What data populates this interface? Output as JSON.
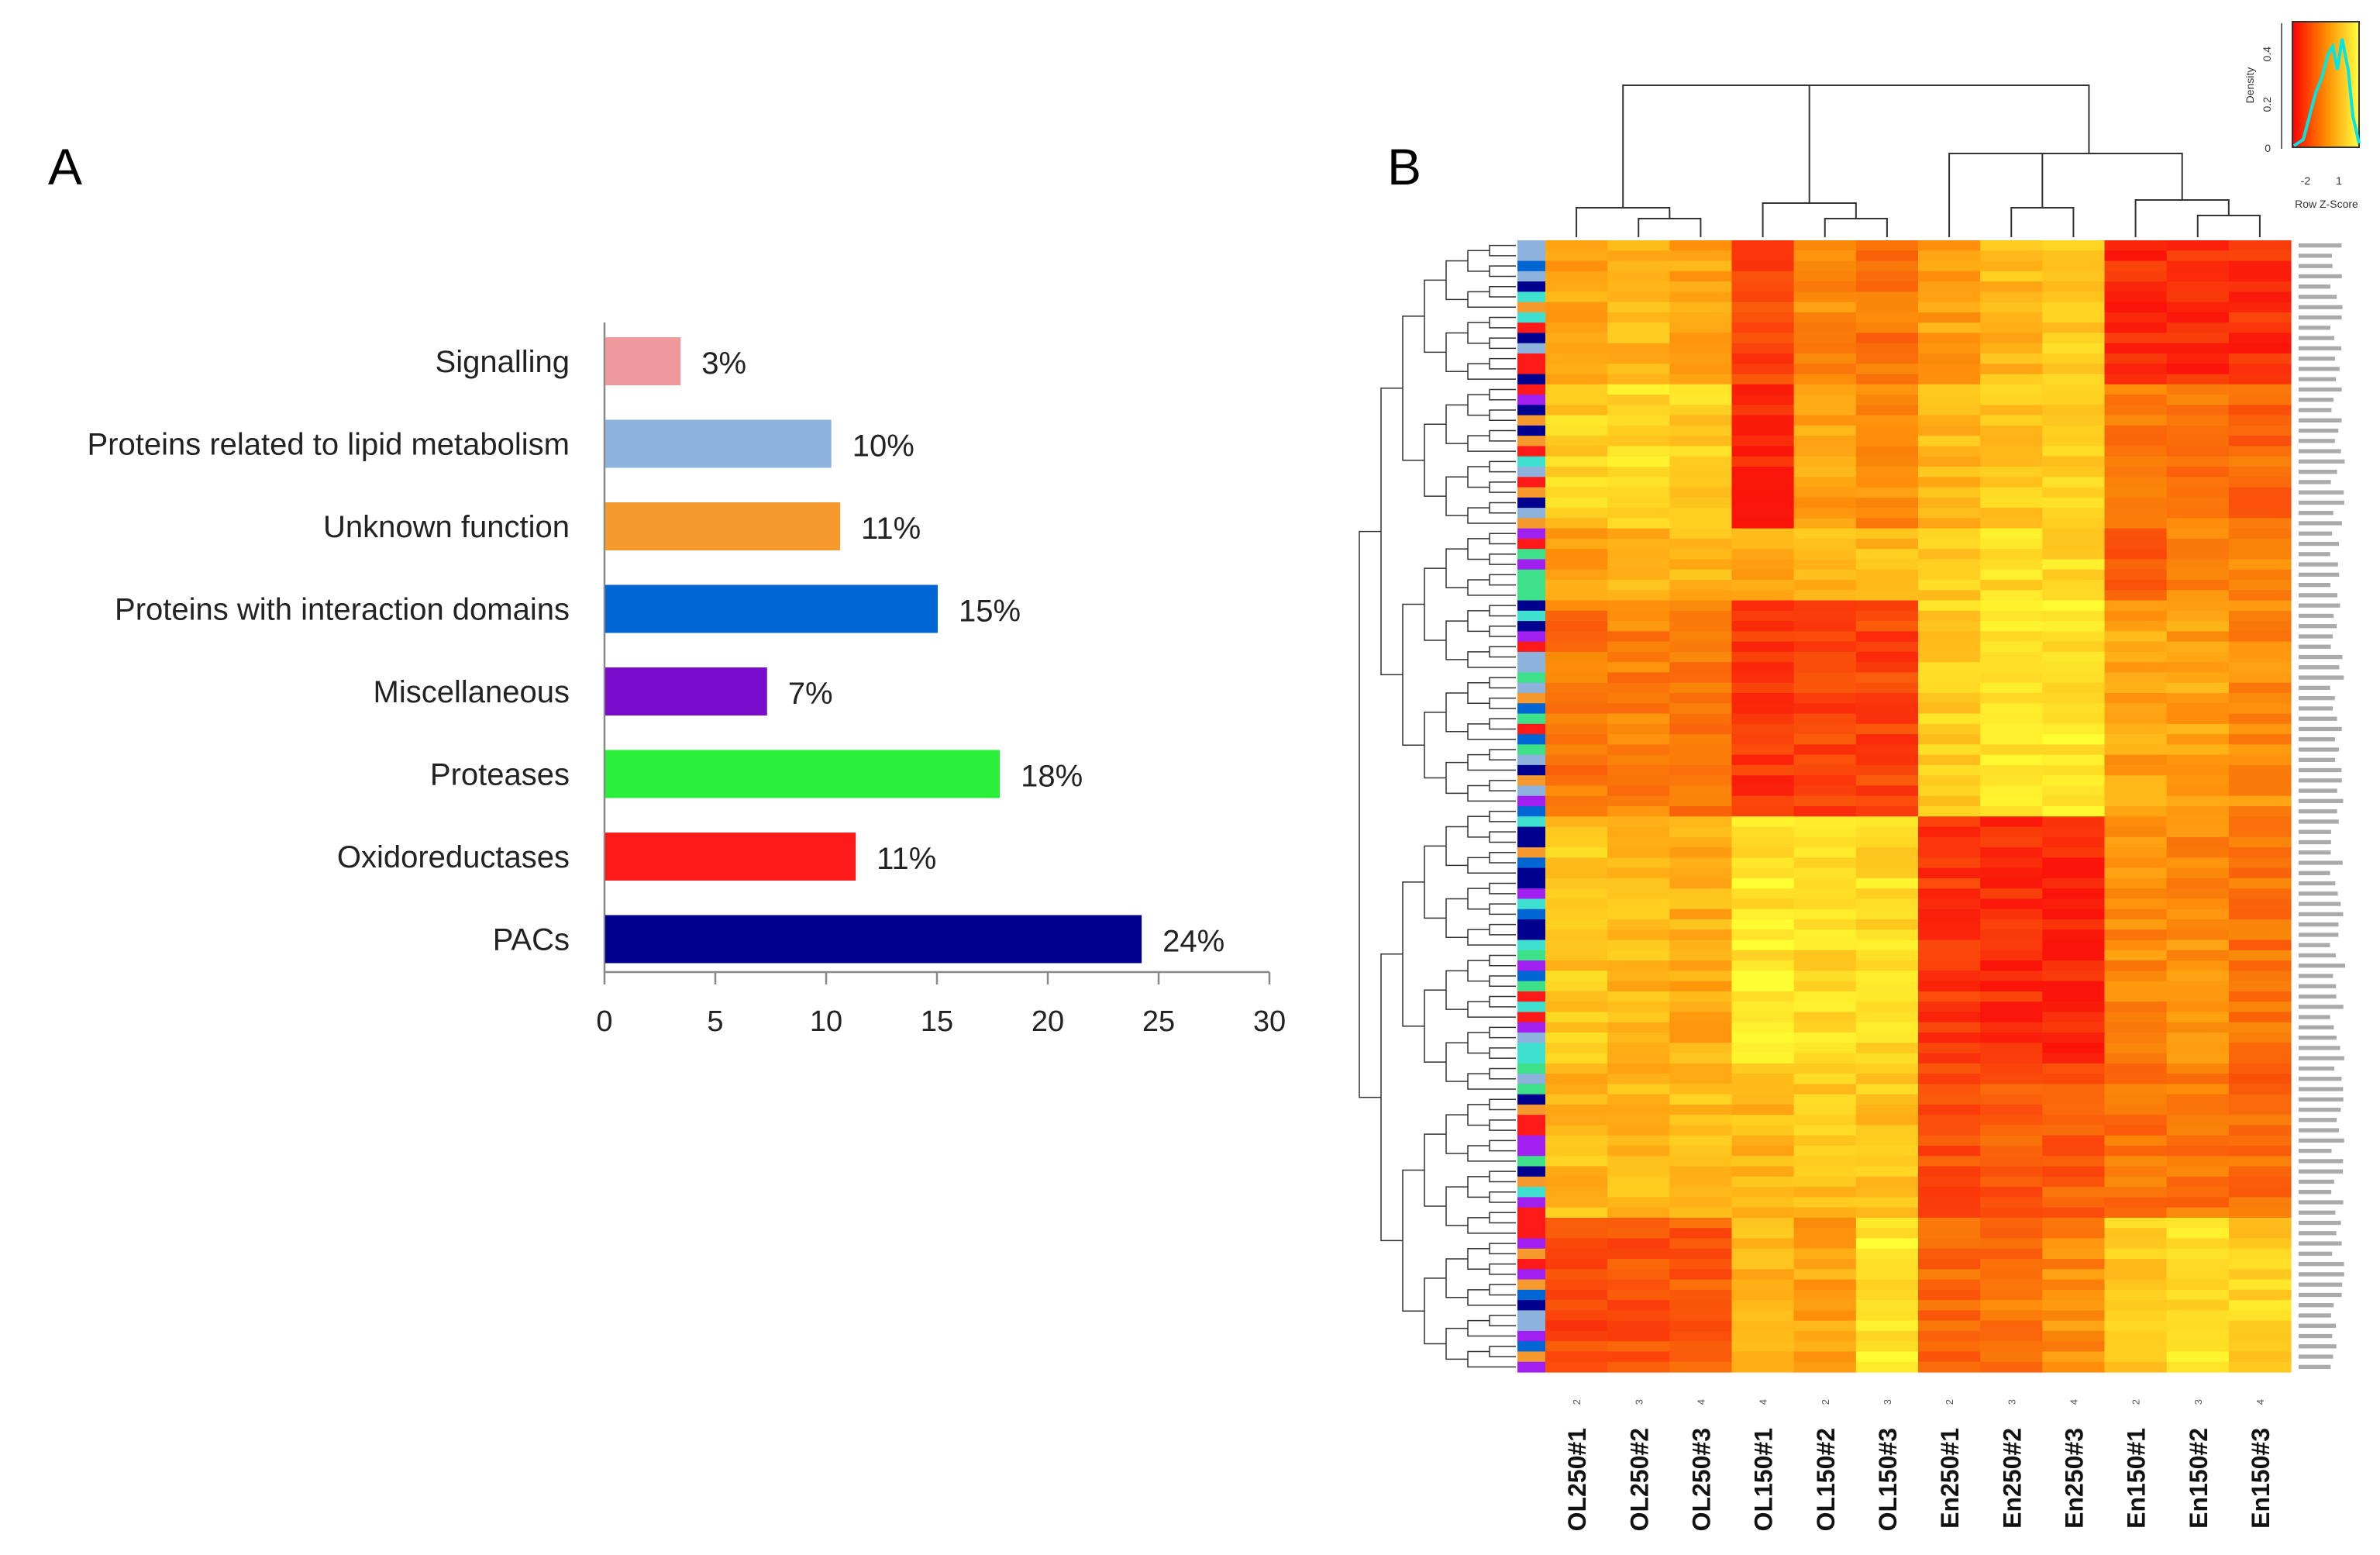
{
  "chart_data": [
    {
      "panel": "A",
      "type": "bar",
      "orientation": "horizontal",
      "categories": [
        "Signalling",
        "Proteins related to lipid metabolism",
        "Unknown function",
        "Proteins with interaction domains",
        "Miscellaneous",
        "Proteases",
        "Oxidoreductases",
        "PACs"
      ],
      "values": [
        3.4,
        10.2,
        10.6,
        15.0,
        7.3,
        17.8,
        11.3,
        24.2
      ],
      "value_labels": [
        "3%",
        "10%",
        "11%",
        "15%",
        "7%",
        "18%",
        "11%",
        "24%"
      ],
      "colors": [
        "#f0999c",
        "#8db3dc",
        "#f79a2e",
        "#0066d3",
        "#7a0ccb",
        "#2bf03b",
        "#ff1a1a",
        "#00008f"
      ],
      "xlim": [
        0,
        30
      ],
      "xticks": [
        "0",
        "5",
        "10",
        "15",
        "20",
        "25",
        "30"
      ],
      "xlabel": "",
      "ylabel": "",
      "grid": false
    },
    {
      "panel": "B",
      "type": "heatmap",
      "columns": [
        "OL250#1",
        "OL250#2",
        "OL250#3",
        "OL150#1",
        "OL150#2",
        "OL150#3",
        "En250#1",
        "En250#2",
        "En250#3",
        "En150#1",
        "En150#2",
        "En150#3"
      ],
      "replicate_labels": [
        "2",
        "3",
        "4",
        "4",
        "2",
        "3",
        "2",
        "3",
        "4",
        "2",
        "3",
        "4"
      ],
      "color_key": {
        "title": "Row Z-Score",
        "ylabel": "Density",
        "xticks": [
          "-2",
          "1"
        ],
        "yticks": [
          "0",
          "0.2",
          "0.4"
        ]
      },
      "row_count": 110,
      "cluster_profiles": [
        {
          "rows": [
            0,
            14
          ],
          "values": [
            0.6,
            0.7,
            0.6,
            0.2,
            0.5,
            0.4,
            0.6,
            0.7,
            0.8,
            0.1,
            0.1,
            0.1
          ]
        },
        {
          "rows": [
            14,
            28
          ],
          "values": [
            0.8,
            0.85,
            0.8,
            0.05,
            0.6,
            0.5,
            0.7,
            0.75,
            0.8,
            0.4,
            0.4,
            0.35
          ]
        },
        {
          "rows": [
            28,
            35
          ],
          "values": [
            0.6,
            0.7,
            0.7,
            0.6,
            0.7,
            0.7,
            0.8,
            0.85,
            0.85,
            0.3,
            0.5,
            0.5
          ]
        },
        {
          "rows": [
            35,
            56
          ],
          "values": [
            0.4,
            0.45,
            0.4,
            0.15,
            0.2,
            0.2,
            0.8,
            0.9,
            0.9,
            0.6,
            0.6,
            0.5
          ]
        },
        {
          "rows": [
            56,
            80
          ],
          "values": [
            0.75,
            0.7,
            0.65,
            0.9,
            0.85,
            0.85,
            0.15,
            0.1,
            0.05,
            0.5,
            0.5,
            0.4
          ]
        },
        {
          "rows": [
            80,
            95
          ],
          "values": [
            0.7,
            0.7,
            0.7,
            0.7,
            0.75,
            0.75,
            0.25,
            0.3,
            0.3,
            0.4,
            0.4,
            0.35
          ]
        },
        {
          "rows": [
            95,
            110
          ],
          "values": [
            0.2,
            0.25,
            0.3,
            0.7,
            0.6,
            0.9,
            0.35,
            0.4,
            0.5,
            0.8,
            0.85,
            0.8
          ]
        }
      ]
    }
  ]
}
